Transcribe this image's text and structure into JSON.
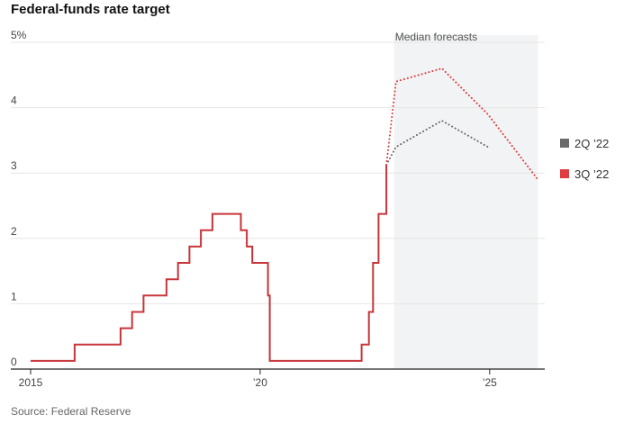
{
  "chart_data": {
    "type": "line",
    "title": "Federal-funds rate target",
    "source": "Source: Federal Reserve",
    "forecast_label": "Median forecasts",
    "y_ticks": [
      "5%",
      "4",
      "3",
      "2",
      "1",
      "0"
    ],
    "x_ticks": [
      "2015",
      "’20",
      "’25"
    ],
    "xlim": [
      2015.0,
      2026.2
    ],
    "ylim": [
      0,
      5
    ],
    "forecast_range": [
      2022.92,
      2026.05
    ],
    "colors": {
      "actual": "#c8353a",
      "q2": "#6b6b6b",
      "q3": "#e03c41",
      "shade": "#f1f3f4",
      "grid": "#e6e6e6"
    },
    "legend": [
      {
        "label": "2Q ’22",
        "color": "#6b6b6b"
      },
      {
        "label": "3Q ’22",
        "color": "#e03c41"
      }
    ],
    "series": [
      {
        "id": "actual",
        "style": "solid",
        "points": [
          [
            2015.0,
            0.125
          ],
          [
            2015.96,
            0.125
          ],
          [
            2015.96,
            0.375
          ],
          [
            2016.96,
            0.375
          ],
          [
            2016.96,
            0.625
          ],
          [
            2017.21,
            0.625
          ],
          [
            2017.21,
            0.875
          ],
          [
            2017.46,
            0.875
          ],
          [
            2017.46,
            1.125
          ],
          [
            2017.96,
            1.125
          ],
          [
            2017.96,
            1.375
          ],
          [
            2018.21,
            1.375
          ],
          [
            2018.21,
            1.625
          ],
          [
            2018.46,
            1.625
          ],
          [
            2018.46,
            1.875
          ],
          [
            2018.71,
            1.875
          ],
          [
            2018.71,
            2.125
          ],
          [
            2018.96,
            2.125
          ],
          [
            2018.96,
            2.375
          ],
          [
            2019.58,
            2.375
          ],
          [
            2019.58,
            2.125
          ],
          [
            2019.71,
            2.125
          ],
          [
            2019.71,
            1.875
          ],
          [
            2019.83,
            1.875
          ],
          [
            2019.83,
            1.625
          ],
          [
            2020.17,
            1.625
          ],
          [
            2020.17,
            1.125
          ],
          [
            2020.21,
            1.125
          ],
          [
            2020.21,
            0.125
          ],
          [
            2022.21,
            0.125
          ],
          [
            2022.21,
            0.375
          ],
          [
            2022.37,
            0.375
          ],
          [
            2022.37,
            0.875
          ],
          [
            2022.46,
            0.875
          ],
          [
            2022.46,
            1.625
          ],
          [
            2022.58,
            1.625
          ],
          [
            2022.58,
            2.375
          ],
          [
            2022.75,
            2.375
          ],
          [
            2022.75,
            3.125
          ]
        ]
      },
      {
        "id": "q2",
        "name": "2Q ’22",
        "style": "dotted",
        "points": [
          [
            2022.75,
            3.125
          ],
          [
            2022.96,
            3.4
          ],
          [
            2023.96,
            3.8
          ],
          [
            2024.96,
            3.4
          ]
        ]
      },
      {
        "id": "q3",
        "name": "3Q ’22",
        "style": "dotted",
        "points": [
          [
            2022.75,
            3.125
          ],
          [
            2022.96,
            4.4
          ],
          [
            2023.96,
            4.6
          ],
          [
            2024.96,
            3.9
          ],
          [
            2026.05,
            2.9
          ]
        ]
      }
    ]
  }
}
